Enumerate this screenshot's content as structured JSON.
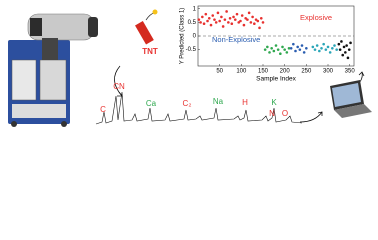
{
  "labels": {
    "tnt": "TNT",
    "elements": [
      "C",
      "CN",
      "Ca",
      "C₂",
      "Na",
      "H",
      "K",
      "N",
      "O"
    ]
  },
  "chart_data": {
    "type": "scatter",
    "ylabel": "Y Predicted (Class 1)",
    "xlabel": "Sample Index",
    "annotations": [
      {
        "text": "Explosive",
        "color": "#e8312f"
      },
      {
        "text": "Non-Explosive",
        "color": "#2a5db0"
      }
    ],
    "xlim": [
      0,
      360
    ],
    "ylim": [
      -1.1,
      1.1
    ],
    "xticks": [
      50,
      100,
      150,
      200,
      250,
      300,
      350
    ],
    "yticks": [
      -0.5,
      0,
      0.5,
      1
    ],
    "hline": 0,
    "series": [
      {
        "color": "#e8312f",
        "x": [
          2,
          6,
          10,
          14,
          18,
          22,
          26,
          30,
          34,
          38,
          42,
          46,
          50,
          54,
          58,
          62,
          66,
          70,
          74,
          78,
          82,
          86,
          90,
          94,
          98,
          102,
          106,
          110,
          114,
          118,
          122,
          126,
          130,
          134,
          138,
          142,
          146,
          150
        ],
        "values": [
          0.6,
          0.5,
          0.7,
          0.45,
          0.8,
          0.55,
          0.65,
          0.4,
          0.75,
          0.6,
          0.5,
          0.85,
          0.55,
          0.7,
          0.35,
          0.6,
          0.9,
          0.5,
          0.65,
          0.45,
          0.7,
          0.6,
          0.8,
          0.5,
          0.55,
          0.75,
          0.4,
          0.65,
          0.6,
          0.85,
          0.5,
          0.7,
          0.45,
          0.6,
          0.55,
          0.3,
          0.65,
          0.5
        ]
      },
      {
        "color": "#2fa84f",
        "x": [
          155,
          160,
          165,
          170,
          175,
          180,
          185,
          190,
          195,
          200,
          205,
          210
        ],
        "values": [
          -0.5,
          -0.4,
          -0.6,
          -0.45,
          -0.55,
          -0.35,
          -0.5,
          -0.65,
          -0.4,
          -0.5,
          -0.6,
          -0.45
        ]
      },
      {
        "color": "#2a5db0",
        "x": [
          215,
          220,
          225,
          230,
          235,
          240,
          245,
          250
        ],
        "values": [
          -0.45,
          -0.3,
          -0.55,
          -0.4,
          -0.5,
          -0.35,
          -0.6,
          -0.45
        ]
      },
      {
        "color": "#2aa6b8",
        "x": [
          265,
          270,
          275,
          280,
          285,
          290,
          295,
          300,
          305,
          310,
          315,
          320
        ],
        "values": [
          -0.4,
          -0.5,
          -0.35,
          -0.55,
          -0.45,
          -0.3,
          -0.5,
          -0.4,
          -0.6,
          -0.45,
          -0.35,
          -0.5
        ]
      },
      {
        "color": "#111111",
        "x": [
          325,
          328,
          331,
          334,
          337,
          340,
          343,
          346,
          349,
          352
        ],
        "values": [
          -0.3,
          -0.5,
          -0.2,
          -0.7,
          -0.4,
          -0.6,
          -0.35,
          -0.8,
          -0.5,
          -0.25
        ]
      }
    ]
  }
}
